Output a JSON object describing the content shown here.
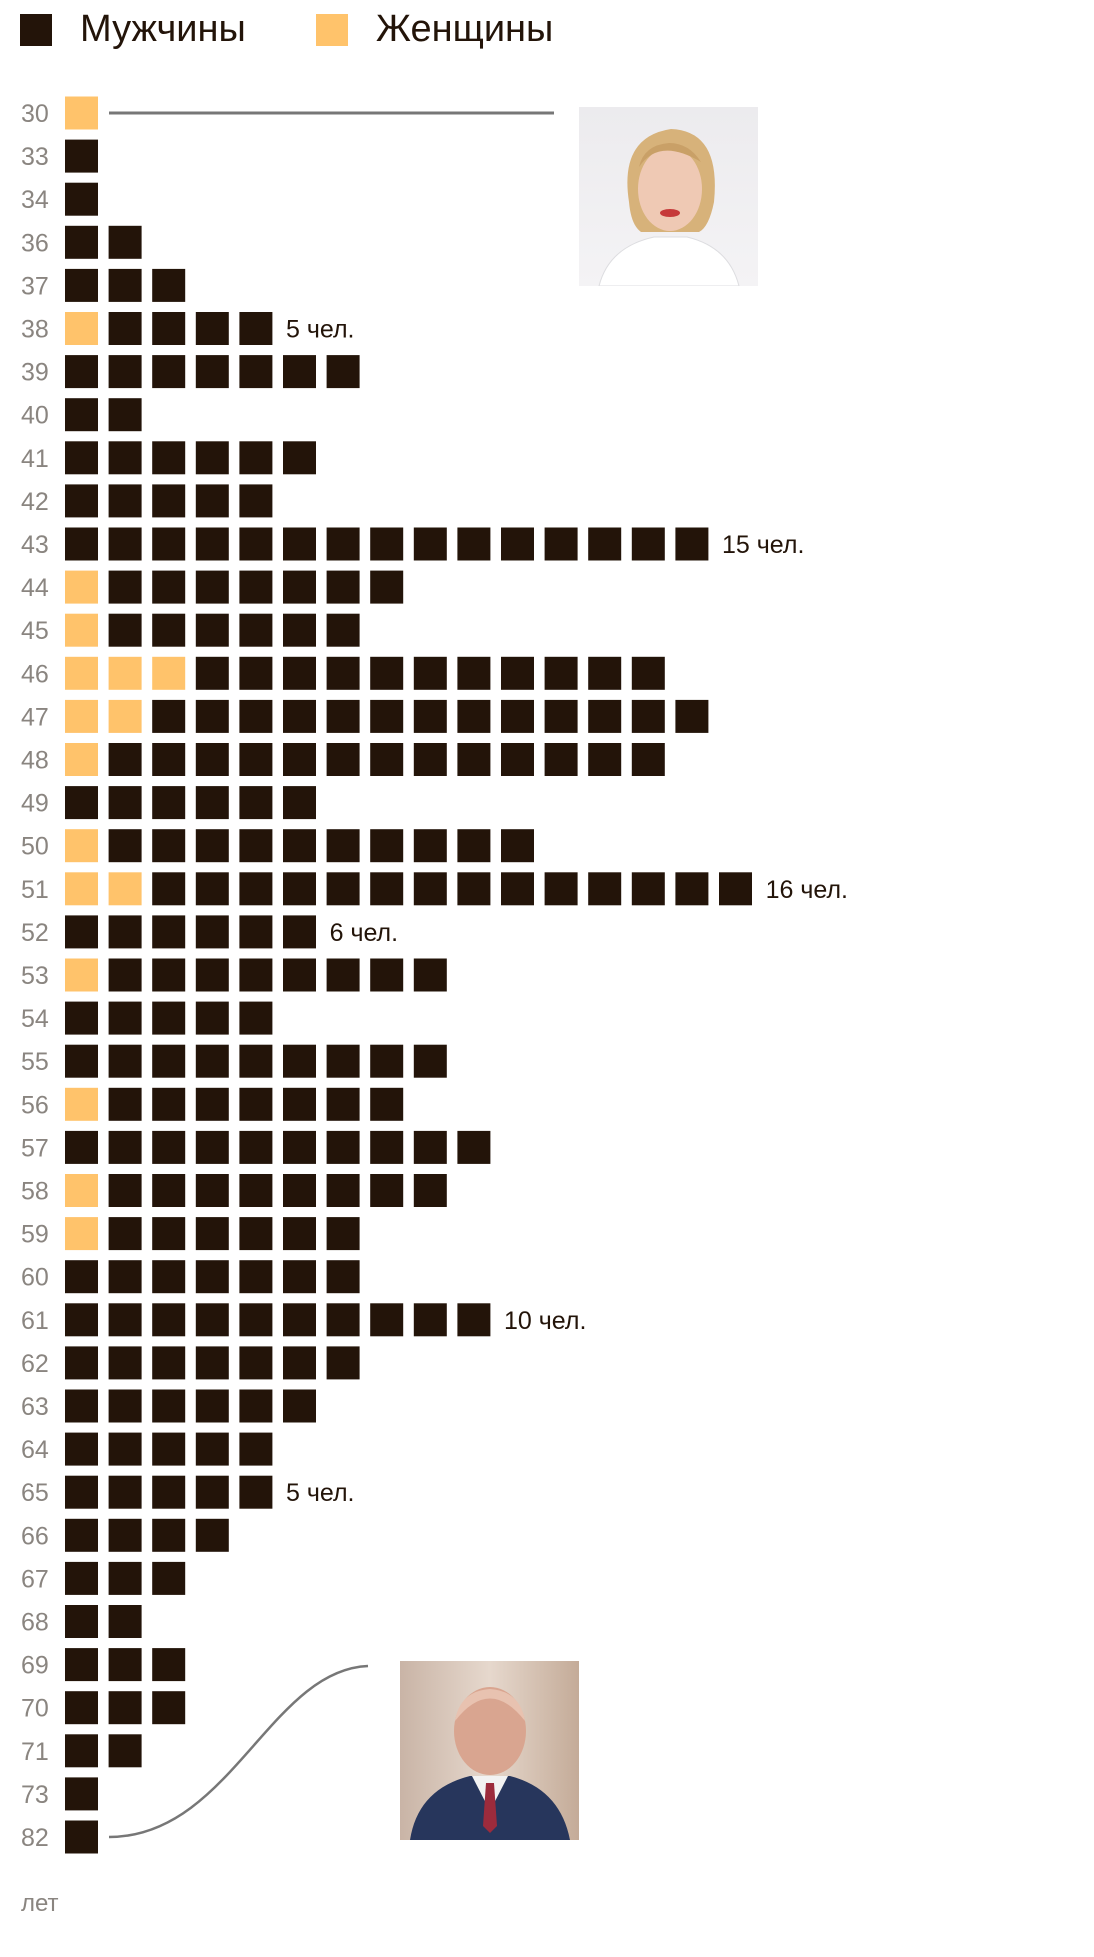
{
  "chart_data": {
    "type": "bar",
    "orientation": "horizontal",
    "style": "unit-squares",
    "unit_label": "лет",
    "legend_placement": "top-left",
    "categories": [
      "30",
      "33",
      "34",
      "36",
      "37",
      "38",
      "39",
      "40",
      "41",
      "42",
      "43",
      "44",
      "45",
      "46",
      "47",
      "48",
      "49",
      "50",
      "51",
      "52",
      "53",
      "54",
      "55",
      "56",
      "57",
      "58",
      "59",
      "60",
      "61",
      "62",
      "63",
      "64",
      "65",
      "66",
      "67",
      "68",
      "69",
      "70",
      "71",
      "73",
      "82"
    ],
    "series": [
      {
        "name": "Женщины",
        "color": "#ffc36b",
        "values": [
          1,
          0,
          0,
          0,
          0,
          1,
          0,
          0,
          0,
          0,
          0,
          1,
          1,
          3,
          2,
          1,
          0,
          1,
          2,
          0,
          1,
          0,
          0,
          1,
          0,
          1,
          1,
          0,
          0,
          0,
          0,
          0,
          0,
          0,
          0,
          0,
          0,
          0,
          0,
          0,
          0
        ]
      },
      {
        "name": "Мужчины",
        "color": "#231409",
        "values": [
          0,
          1,
          1,
          2,
          3,
          4,
          7,
          2,
          6,
          5,
          15,
          7,
          6,
          11,
          13,
          13,
          6,
          10,
          14,
          6,
          8,
          5,
          9,
          7,
          10,
          8,
          6,
          7,
          10,
          7,
          6,
          5,
          5,
          4,
          3,
          2,
          3,
          3,
          2,
          1,
          1
        ]
      }
    ],
    "annotations": [
      {
        "category": "38",
        "text": "5 чел."
      },
      {
        "category": "43",
        "text": "15 чел."
      },
      {
        "category": "51",
        "text": "16 чел."
      },
      {
        "category": "52",
        "text": "6 чел."
      },
      {
        "category": "61",
        "text": "10 чел."
      },
      {
        "category": "65",
        "text": "5 чел."
      }
    ],
    "photo_callouts": [
      {
        "category": "30",
        "icon": "woman-portrait-photo"
      },
      {
        "category": "82",
        "icon": "elderly-man-portrait-photo"
      }
    ]
  }
}
